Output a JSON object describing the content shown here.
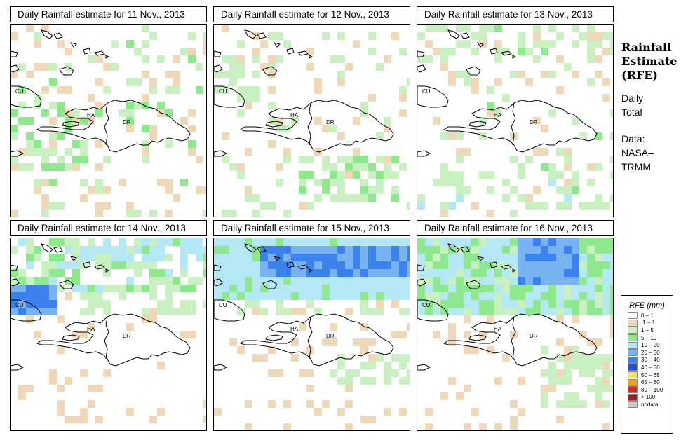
{
  "panels": [
    {
      "title": "Daily Rainfall estimate for  11 Nov., 2013",
      "seed": 11,
      "profile": "light"
    },
    {
      "title": "Daily Rainfall estimate for  12 Nov., 2013",
      "seed": 12,
      "profile": "south"
    },
    {
      "title": "Daily Rainfall estimate for  13 Nov., 2013",
      "seed": 13,
      "profile": "sparse"
    },
    {
      "title": "Daily Rainfall estimate for  14 Nov., 2013",
      "seed": 14,
      "profile": "north"
    },
    {
      "title": "Daily Rainfall estimate for  15 Nov., 2013",
      "seed": 15,
      "profile": "band"
    },
    {
      "title": "Daily Rainfall estimate for  16 Nov., 2013",
      "seed": 16,
      "profile": "band2"
    }
  ],
  "map_labels": {
    "cuba": "CU",
    "haiti": "HA",
    "dominican_republic": "DR"
  },
  "sidebar": {
    "title_lines": [
      "Rainfall",
      "Estimate",
      "(RFE)"
    ],
    "lines": [
      "Daily",
      "Total",
      "",
      "Data:",
      "NASA–",
      "TRMM"
    ]
  },
  "legend": {
    "title": "RFE (mm)",
    "items": [
      {
        "label": "0 – 1",
        "color": "#ffffff"
      },
      {
        "label": ".1 – 1",
        "color": "#eed8b8"
      },
      {
        "label": "1 – 5",
        "color": "#c8f0c0"
      },
      {
        "label": "5 – 10",
        "color": "#8ee88e"
      },
      {
        "label": "10 – 20",
        "color": "#b4e8f4"
      },
      {
        "label": "20 – 30",
        "color": "#78b4f4"
      },
      {
        "label": "30 – 40",
        "color": "#3c82ee"
      },
      {
        "label": "40 – 50",
        "color": "#2050d0"
      },
      {
        "label": "50 – 65",
        "color": "#f8e060"
      },
      {
        "label": "65 – 80",
        "color": "#f8a020"
      },
      {
        "label": "80 – 100",
        "color": "#e02810"
      },
      {
        "label": "> 100",
        "color": "#9a2020"
      },
      {
        "label": "nodata",
        "color": "#c8c8c8"
      }
    ]
  }
}
